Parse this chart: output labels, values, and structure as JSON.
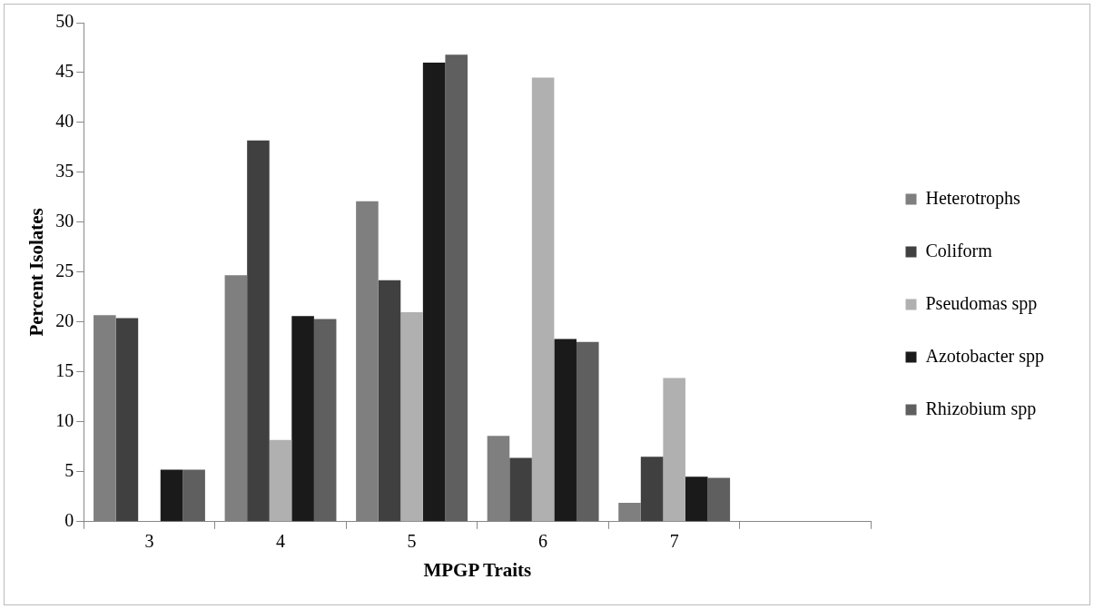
{
  "chart_data": {
    "type": "bar",
    "xlabel": "MPGP Traits",
    "ylabel": "Percent Isolates",
    "categories": [
      "3",
      "4",
      "5",
      "6",
      "7",
      null
    ],
    "series": [
      {
        "name": "Heterotrophs",
        "color": "#7f7f7f",
        "values": [
          20.7,
          24.7,
          32.1,
          8.6,
          1.9,
          null
        ]
      },
      {
        "name": "Coliform",
        "color": "#404040",
        "values": [
          20.4,
          38.2,
          24.2,
          6.4,
          6.5,
          null
        ]
      },
      {
        "name": "Pseudomas spp",
        "color": "#b0b0b0",
        "values": [
          null,
          8.2,
          21.0,
          44.5,
          14.4,
          null
        ]
      },
      {
        "name": "Azotobacter spp",
        "color": "#1a1a1a",
        "values": [
          5.2,
          20.6,
          46.0,
          18.3,
          4.5,
          null
        ]
      },
      {
        "name": "Rhizobium spp",
        "color": "#5f5f5f",
        "values": [
          5.2,
          20.3,
          46.8,
          18.0,
          4.4,
          null
        ]
      }
    ],
    "ylim": [
      0,
      50
    ],
    "yticks": [
      0,
      5,
      10,
      15,
      20,
      25,
      30,
      35,
      40,
      45,
      50
    ],
    "grid": false,
    "legend": "right"
  }
}
